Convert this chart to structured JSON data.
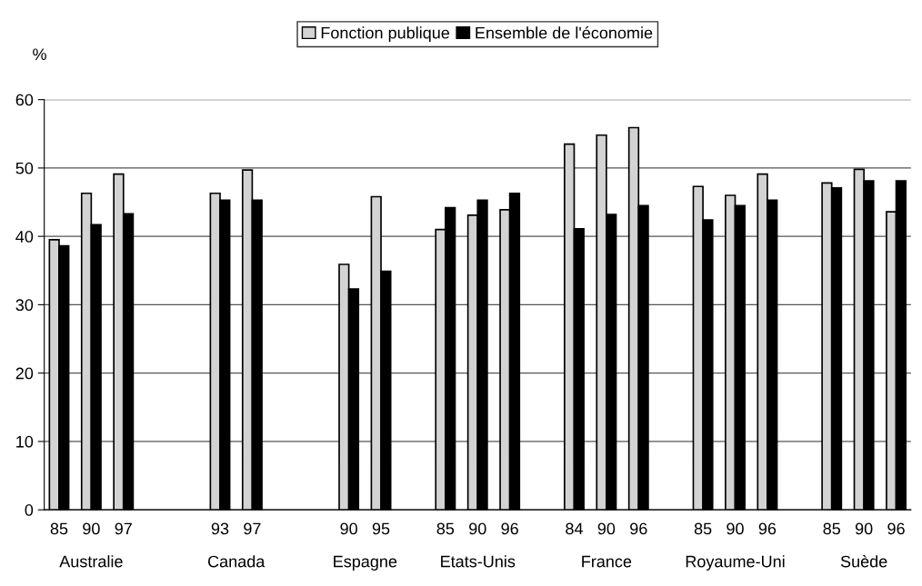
{
  "chart_data": {
    "type": "bar",
    "ylabel": "%",
    "categories": [
      "85",
      "90",
      "97",
      null,
      null,
      "93",
      "97",
      null,
      null,
      "90",
      "95",
      null,
      "85",
      "90",
      "96",
      null,
      "84",
      "90",
      "96",
      null,
      "85",
      "90",
      "96",
      null,
      "85",
      "90",
      "96"
    ],
    "series": [
      {
        "name": "Fonction publique",
        "color": "#d3d3d3",
        "values": [
          39.5,
          46.3,
          49.1,
          null,
          null,
          46.3,
          49.7,
          null,
          null,
          35.9,
          45.8,
          null,
          41.0,
          43.1,
          43.9,
          null,
          53.5,
          54.8,
          55.9,
          null,
          47.3,
          46.0,
          49.1,
          null,
          47.8,
          49.8,
          43.6
        ]
      },
      {
        "name": "Ensemble de l'économie",
        "color": "#000000",
        "values": [
          38.6,
          41.7,
          43.3,
          null,
          null,
          45.3,
          45.3,
          null,
          null,
          32.3,
          34.9,
          null,
          44.2,
          45.3,
          46.3,
          null,
          41.1,
          43.2,
          44.5,
          null,
          42.4,
          44.5,
          45.3,
          null,
          47.1,
          48.1,
          48.1
        ]
      }
    ],
    "annotations": [
      "Australie",
      "Canada",
      "Espagne",
      "Etats-Unis",
      "France",
      "Royaume-Uni",
      "Suède"
    ],
    "ylim": [
      0,
      60
    ],
    "yticks": [
      0,
      10,
      20,
      30,
      40,
      50,
      60
    ],
    "grid": "y",
    "legend": "top"
  }
}
